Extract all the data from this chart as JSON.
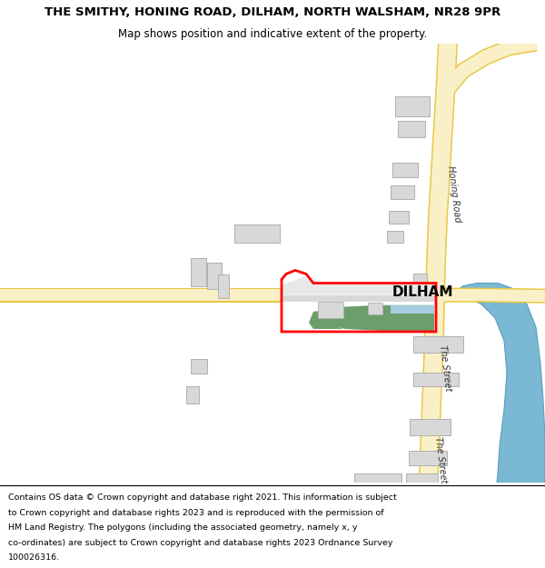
{
  "title_line1": "THE SMITHY, HONING ROAD, DILHAM, NORTH WALSHAM, NR28 9PR",
  "title_line2": "Map shows position and indicative extent of the property.",
  "footer_lines": [
    "Contains OS data © Crown copyright and database right 2021. This information is subject",
    "to Crown copyright and database rights 2023 and is reproduced with the permission of",
    "HM Land Registry. The polygons (including the associated geometry, namely x, y",
    "co-ordinates) are subject to Crown copyright and database rights 2023 Ordnance Survey",
    "100026316."
  ],
  "map_bg": "#ffffff",
  "road_fill": "#faf0c8",
  "road_border": "#e8c840",
  "building_fill": "#d8d8d8",
  "building_edge": "#b0b0b0",
  "green_fill": "#6b9e6b",
  "blue_fill": "#7ab8d4",
  "red_boundary": "#ff0000",
  "place_name": "DILHAM",
  "road_label1": "Honing Road",
  "road_label2": "The Street",
  "road_label3": "The Street"
}
